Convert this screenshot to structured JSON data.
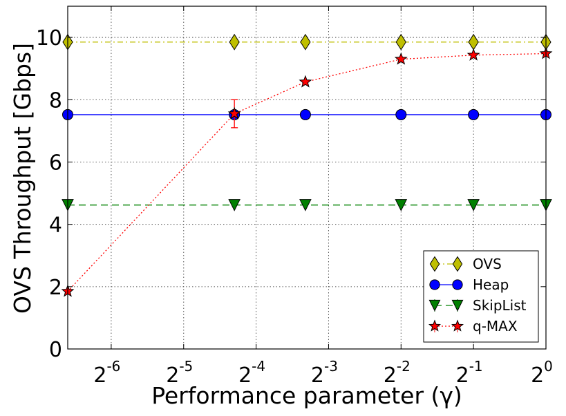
{
  "chart_data": {
    "type": "line",
    "xlabel": "Performance parameter (γ)",
    "ylabel": "OVS Throughput [Gbps]",
    "x_scale": "log2",
    "xlim_exp": [
      -6.6,
      0
    ],
    "ylim": [
      0,
      11
    ],
    "x_ticks": [
      {
        "base": "2",
        "exp": "-6",
        "value_exp": -6
      },
      {
        "base": "2",
        "exp": "-5",
        "value_exp": -5
      },
      {
        "base": "2",
        "exp": "-4",
        "value_exp": -4
      },
      {
        "base": "2",
        "exp": "-3",
        "value_exp": -3
      },
      {
        "base": "2",
        "exp": "-2",
        "value_exp": -2
      },
      {
        "base": "2",
        "exp": "-1",
        "value_exp": -1
      },
      {
        "base": "2",
        "exp": "0",
        "value_exp": 0
      }
    ],
    "y_ticks": [
      "0",
      "2",
      "4",
      "6",
      "8",
      "10"
    ],
    "y_tick_values": [
      0,
      2,
      4,
      6,
      8,
      10
    ],
    "grid": true,
    "legend_position": "lower-right",
    "x_points_exp": [
      -6.6,
      -4.3,
      -3.32,
      -2,
      -1,
      0
    ],
    "series": [
      {
        "name": "OVS",
        "color": "#bfbf00",
        "marker": "diamond",
        "linestyle": "dash-dot",
        "values": [
          9.85,
          9.85,
          9.85,
          9.85,
          9.85,
          9.85
        ],
        "errors": [
          0,
          0,
          0,
          0,
          0,
          0
        ]
      },
      {
        "name": "Heap",
        "color": "#0000ff",
        "marker": "circle",
        "linestyle": "solid",
        "values": [
          7.52,
          7.52,
          7.52,
          7.52,
          7.52,
          7.52
        ],
        "errors": [
          0,
          0,
          0,
          0,
          0,
          0
        ]
      },
      {
        "name": "SkipList",
        "color": "#008000",
        "marker": "triangle-down",
        "linestyle": "dashed",
        "values": [
          4.62,
          4.62,
          4.62,
          4.62,
          4.62,
          4.62
        ],
        "errors": [
          0,
          0,
          0,
          0,
          0,
          0
        ]
      },
      {
        "name": "q-MAX",
        "color": "#ff0000",
        "marker": "star",
        "linestyle": "dotted",
        "values": [
          1.85,
          7.55,
          8.57,
          9.3,
          9.43,
          9.48
        ],
        "errors": [
          0,
          0.45,
          0,
          0,
          0,
          0
        ]
      }
    ]
  }
}
